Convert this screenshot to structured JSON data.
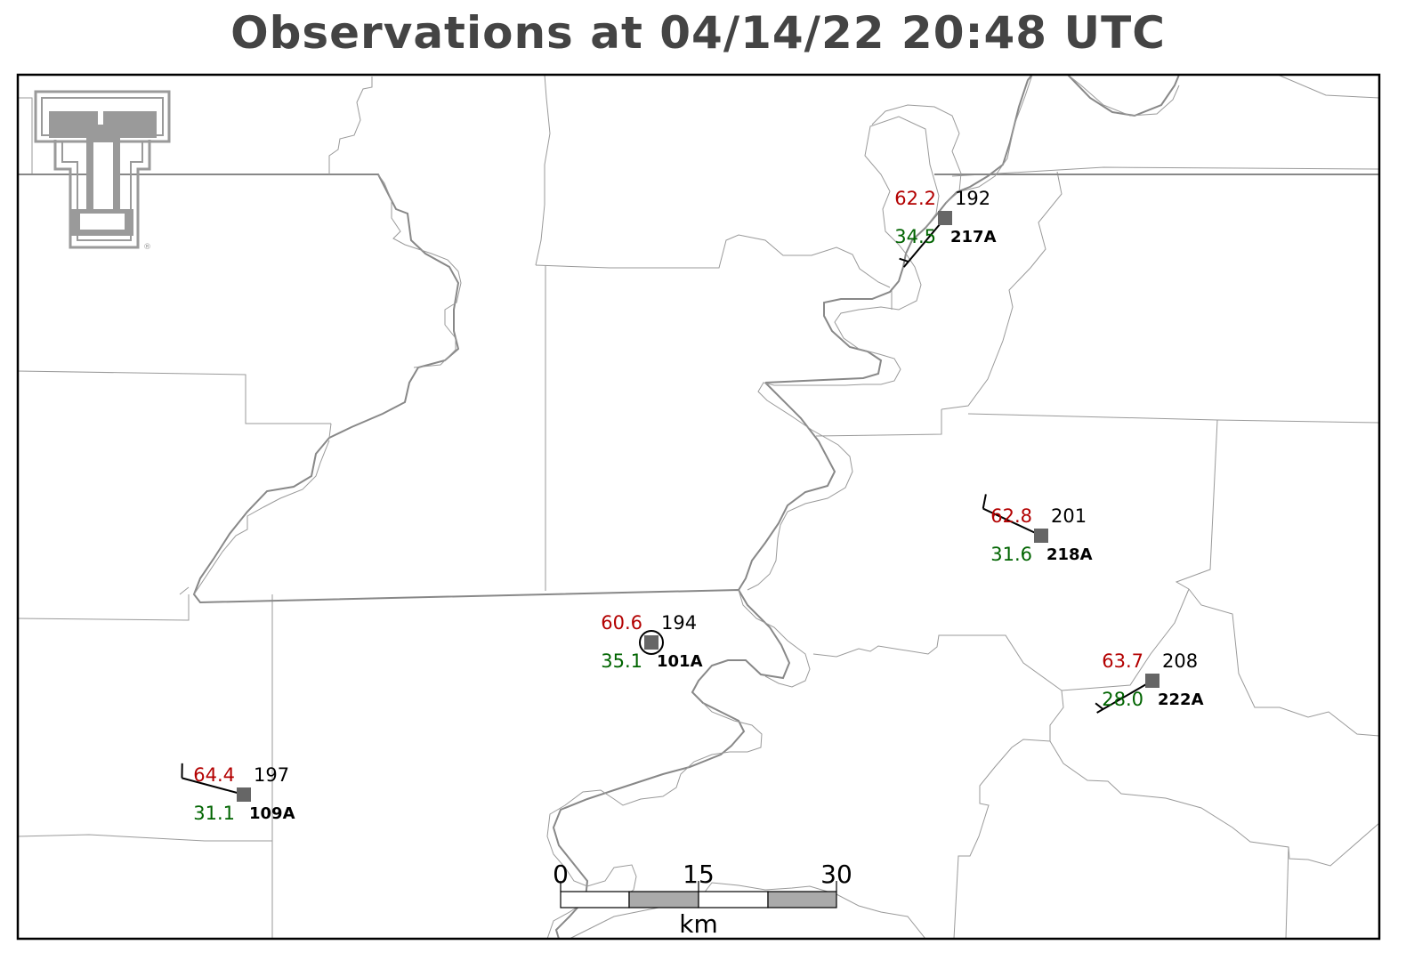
{
  "title": "Observations at 04/14/22 20:48 UTC",
  "colors": {
    "temperature": "#b30000",
    "dewpoint": "#006400",
    "pressure": "#000000",
    "station_marker": "#666666",
    "border": "#888888",
    "county": "#9a9a9a"
  },
  "logo": {
    "icon": "texas-tech-double-t-logo"
  },
  "stations": [
    {
      "id": "217A",
      "temp": "62.2",
      "dewpt": "34.5",
      "pressure": "192",
      "wind_from_deg": 220,
      "wind_kt": 5,
      "calm": false
    },
    {
      "id": "218A",
      "temp": "62.8",
      "dewpt": "31.6",
      "pressure": "201",
      "wind_from_deg": 295,
      "wind_kt": 10,
      "calm": false
    },
    {
      "id": "101A",
      "temp": "60.6",
      "dewpt": "35.1",
      "pressure": "194",
      "wind_from_deg": 0,
      "wind_kt": 0,
      "calm": true
    },
    {
      "id": "222A",
      "temp": "63.7",
      "dewpt": "28.0",
      "pressure": "208",
      "wind_from_deg": 240,
      "wind_kt": 5,
      "calm": false
    },
    {
      "id": "109A",
      "temp": "64.4",
      "dewpt": "31.1",
      "pressure": "197",
      "wind_from_deg": 285,
      "wind_kt": 10,
      "calm": false
    }
  ],
  "scalebar": {
    "ticks": [
      "0",
      "15",
      "30"
    ],
    "unit": "km"
  }
}
